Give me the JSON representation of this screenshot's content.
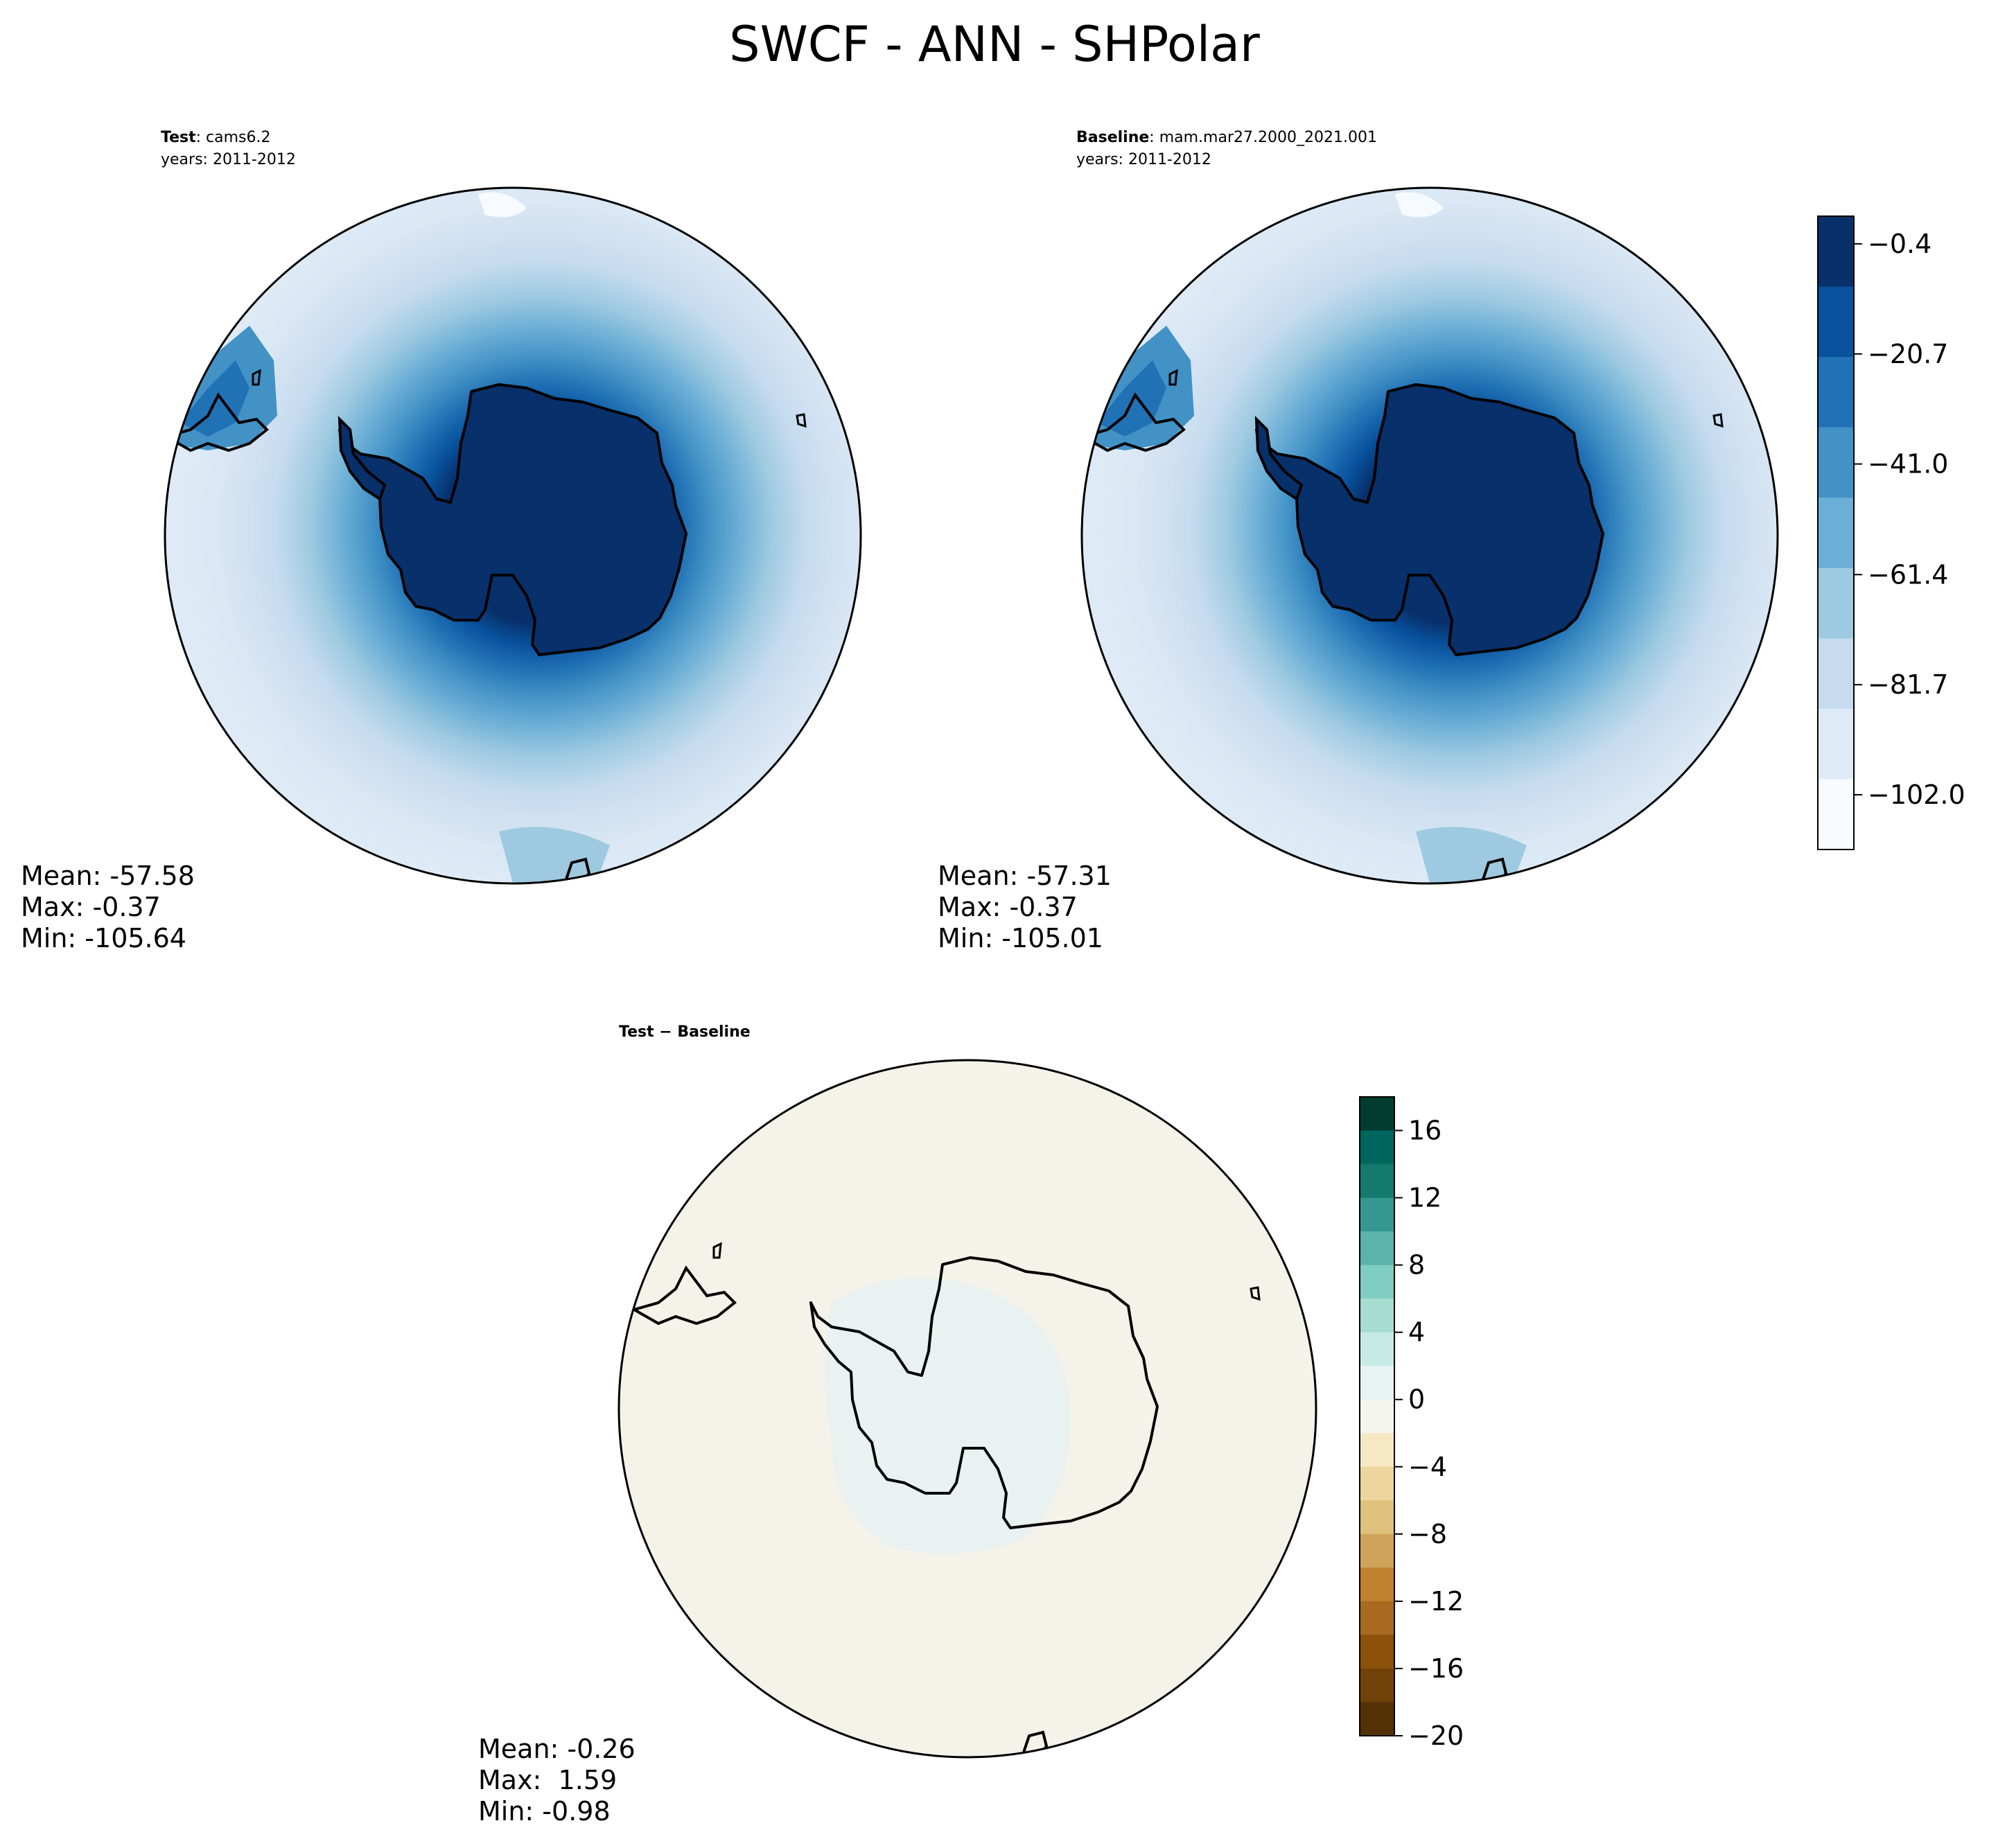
{
  "title": "SWCF - ANN - SHPolar",
  "panels": [
    {
      "id": "test",
      "heading_bold": "Test",
      "heading_rest": ": cams6.2",
      "years": "years: 2011-2012",
      "stats": [
        "Mean: -57.58",
        "Max: -0.37",
        "Min: -105.64"
      ]
    },
    {
      "id": "baseline",
      "heading_bold": "Baseline",
      "heading_rest": ": mam.mar27.2000_2021.001",
      "years": "years: 2011-2012",
      "stats": [
        "Mean: -57.31",
        "Max: -0.37",
        "Min: -105.01"
      ]
    },
    {
      "id": "diff",
      "heading_bold": "Test − Baseline",
      "heading_rest": "",
      "years": "",
      "stats": [
        "Mean: -0.26",
        "Max:  1.59",
        "Min: -0.98"
      ]
    }
  ],
  "colorbars": {
    "blues": {
      "range": [
        -112.1,
        4.7
      ],
      "ticks": [
        "−0.4",
        "−20.7",
        "−41.0",
        "−61.4",
        "−81.7",
        "−102.0"
      ],
      "tick_values": [
        -0.4,
        -20.7,
        -41.0,
        -61.4,
        -81.7,
        -102.0
      ],
      "colors_top_to_bottom": [
        "#08306b",
        "#08519c",
        "#2171b5",
        "#4292c6",
        "#6baed6",
        "#9ecae1",
        "#c6dbef",
        "#deebf7",
        "#f7fbff"
      ]
    },
    "brbg": {
      "range": [
        -20,
        18
      ],
      "ticks": [
        "16",
        "12",
        "8",
        "4",
        "0",
        "−4",
        "−8",
        "−12",
        "−16",
        "−20"
      ],
      "tick_values": [
        16,
        12,
        8,
        4,
        0,
        -4,
        -8,
        -12,
        -16,
        -20
      ],
      "colors_top_to_bottom": [
        "#003c30",
        "#01665e",
        "#137a6e",
        "#35978f",
        "#5ab4ac",
        "#80cdc1",
        "#a8ddd2",
        "#c7eae5",
        "#e6f3f1",
        "#f5f5f0",
        "#f6e8c3",
        "#ecd59e",
        "#dfc27d",
        "#cfa45a",
        "#bf812d",
        "#a86a20",
        "#8c510a",
        "#704208",
        "#543005"
      ]
    }
  },
  "chart_data": [
    {
      "type": "heatmap",
      "panel": "Test : cams6.2",
      "projection": "south polar stereographic",
      "variable": "SWCF",
      "season": "ANN",
      "years": "2011-2012",
      "mean": -57.58,
      "max": -0.37,
      "min": -105.64,
      "colorbar_ticks": [
        -0.4,
        -20.7,
        -41.0,
        -61.4,
        -81.7,
        -102.0
      ],
      "colormap": "Blues_r"
    },
    {
      "type": "heatmap",
      "panel": "Baseline : mam.mar27.2000_2021.001",
      "projection": "south polar stereographic",
      "variable": "SWCF",
      "season": "ANN",
      "years": "2011-2012",
      "mean": -57.31,
      "max": -0.37,
      "min": -105.01,
      "colorbar_ticks": [
        -0.4,
        -20.7,
        -41.0,
        -61.4,
        -81.7,
        -102.0
      ],
      "colormap": "Blues_r"
    },
    {
      "type": "heatmap",
      "panel": "Test − Baseline",
      "projection": "south polar stereographic",
      "mean": -0.26,
      "max": 1.59,
      "min": -0.98,
      "colorbar_ticks": [
        16,
        12,
        8,
        4,
        0,
        -4,
        -8,
        -12,
        -16,
        -20
      ],
      "colormap": "BrBG"
    }
  ]
}
